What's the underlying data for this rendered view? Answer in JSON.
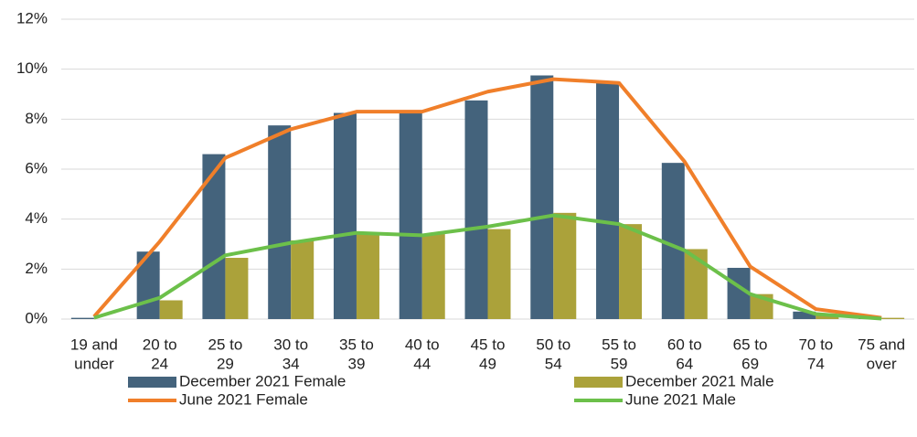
{
  "chart_data": {
    "type": "bar-line",
    "categories": [
      [
        "19 and",
        "under"
      ],
      [
        "20 to",
        "24"
      ],
      [
        "25 to",
        "29"
      ],
      [
        "30 to",
        "34"
      ],
      [
        "35 to",
        "39"
      ],
      [
        "40 to",
        "44"
      ],
      [
        "45 to",
        "49"
      ],
      [
        "50 to",
        "54"
      ],
      [
        "55 to",
        "59"
      ],
      [
        "60 to",
        "64"
      ],
      [
        "65 to",
        "69"
      ],
      [
        "70 to",
        "74"
      ],
      [
        "75 and",
        "over"
      ]
    ],
    "series": [
      {
        "name": "December 2021 Female",
        "kind": "bar",
        "color": "#44637c",
        "values": [
          0.05,
          2.7,
          6.6,
          7.75,
          8.25,
          8.25,
          8.75,
          9.75,
          9.45,
          6.25,
          2.05,
          0.3,
          0.02
        ]
      },
      {
        "name": "December 2021 Male",
        "kind": "bar",
        "color": "#aba23a",
        "values": [
          0,
          0.75,
          2.45,
          3.15,
          3.45,
          3.4,
          3.6,
          4.25,
          3.8,
          2.8,
          1.0,
          0.15,
          0.05
        ]
      },
      {
        "name": "June 2021 Female",
        "kind": "line",
        "color": "#f07f2a",
        "values": [
          0.1,
          3.1,
          6.45,
          7.6,
          8.3,
          8.3,
          9.1,
          9.6,
          9.45,
          6.3,
          2.1,
          0.4,
          0.05
        ]
      },
      {
        "name": "June 2021 Male",
        "kind": "line",
        "color": "#6cc04a",
        "values": [
          0.05,
          0.85,
          2.55,
          3.05,
          3.45,
          3.35,
          3.7,
          4.15,
          3.8,
          2.75,
          1.0,
          0.2,
          0.02
        ]
      }
    ],
    "ylim": [
      0,
      12
    ],
    "yticks": [
      {
        "value": 0,
        "label": "0%"
      },
      {
        "value": 2,
        "label": "2%"
      },
      {
        "value": 4,
        "label": "4%"
      },
      {
        "value": 6,
        "label": "6%"
      },
      {
        "value": 8,
        "label": "8%"
      },
      {
        "value": 10,
        "label": "10%"
      },
      {
        "value": 12,
        "label": "12%"
      }
    ],
    "grid": true
  }
}
